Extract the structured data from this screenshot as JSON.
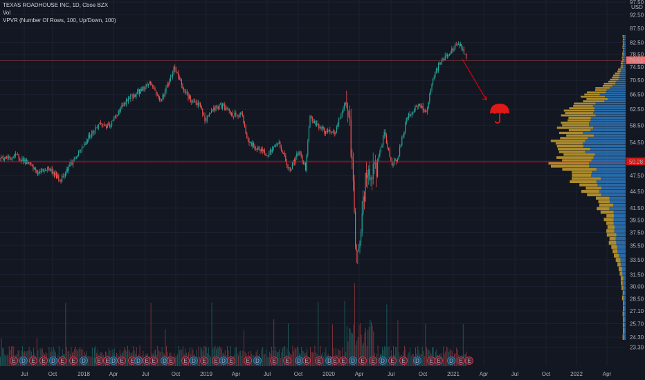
{
  "header": {
    "symbol_line": "TEXAS ROADHOUSE INC, 1D, Cboe BZX",
    "volume_label": "Vol",
    "vpvr_label": "VPVR (Number Of Rows, 100, Up/Down, 100)"
  },
  "colors": {
    "background": "#131722",
    "up": "#26a69a",
    "down": "#ef5350",
    "vp_up": "#2e78bd",
    "vp_down": "#c8a030",
    "level_line": "#ff0000",
    "price_tag": "#f07070"
  },
  "chart_data": {
    "type": "candlestick",
    "title": "TEXAS ROADHOUSE INC, 1D, Cboe BZX",
    "currency": "USD",
    "ylim": [
      22.3,
      97.5
    ],
    "y_scale": "log",
    "y_ticks": [
      "97.50",
      "92.50",
      "87.50",
      "82.50",
      "78.50",
      "74.50",
      "70.50",
      "66.50",
      "62.50",
      "58.50",
      "54.50",
      "50.50",
      "47.50",
      "44.50",
      "41.50",
      "39.50",
      "37.50",
      "35.50",
      "33.50",
      "31.50",
      "30.00",
      "28.50",
      "27.10",
      "25.70",
      "24.30",
      "23.30"
    ],
    "x_ticks": [
      "Jul",
      "Oct",
      "2018",
      "Apr",
      "Jul",
      "Oct",
      "2019",
      "Apr",
      "Jul",
      "Oct",
      "2020",
      "Apr",
      "Jul",
      "Oct",
      "2021",
      "Apr",
      "Jul",
      "Oct",
      "2022",
      "Apr"
    ],
    "price_path": [
      [
        "2017-05-15",
        51.0
      ],
      [
        "2017-06-15",
        51.5
      ],
      [
        "2017-07-15",
        50.0
      ],
      [
        "2017-08-15",
        48.0
      ],
      [
        "2017-09-15",
        49.0
      ],
      [
        "2017-10-01",
        48.0
      ],
      [
        "2017-10-20",
        46.5
      ],
      [
        "2017-11-15",
        49.5
      ],
      [
        "2017-12-15",
        52.0
      ],
      [
        "2018-01-15",
        56.0
      ],
      [
        "2018-02-15",
        59.0
      ],
      [
        "2018-03-15",
        58.0
      ],
      [
        "2018-04-15",
        62.5
      ],
      [
        "2018-05-15",
        65.5
      ],
      [
        "2018-06-15",
        67.5
      ],
      [
        "2018-07-15",
        70.0
      ],
      [
        "2018-08-15",
        64.5
      ],
      [
        "2018-09-10",
        70.5
      ],
      [
        "2018-09-25",
        74.5
      ],
      [
        "2018-10-20",
        68.5
      ],
      [
        "2018-11-15",
        64.5
      ],
      [
        "2018-12-10",
        63.5
      ],
      [
        "2018-12-25",
        59.5
      ],
      [
        "2019-01-15",
        62.5
      ],
      [
        "2019-02-15",
        63.5
      ],
      [
        "2019-03-15",
        61.0
      ],
      [
        "2019-04-15",
        61.0
      ],
      [
        "2019-05-01",
        54.5
      ],
      [
        "2019-06-01",
        53.0
      ],
      [
        "2019-07-01",
        52.0
      ],
      [
        "2019-08-01",
        54.5
      ],
      [
        "2019-09-01",
        48.5
      ],
      [
        "2019-10-01",
        52.5
      ],
      [
        "2019-10-20",
        49.0
      ],
      [
        "2019-11-01",
        60.5
      ],
      [
        "2019-12-15",
        57.0
      ],
      [
        "2020-01-15",
        56.5
      ],
      [
        "2020-02-01",
        61.0
      ],
      [
        "2020-02-20",
        65.5
      ],
      [
        "2020-03-01",
        56.0
      ],
      [
        "2020-03-15",
        37.5
      ],
      [
        "2020-03-25",
        33.5
      ],
      [
        "2020-04-15",
        46.5
      ],
      [
        "2020-05-15",
        48.5
      ],
      [
        "2020-06-10",
        56.5
      ],
      [
        "2020-07-01",
        50.0
      ],
      [
        "2020-07-20",
        51.0
      ],
      [
        "2020-08-15",
        60.0
      ],
      [
        "2020-09-15",
        63.5
      ],
      [
        "2020-10-15",
        62.0
      ],
      [
        "2020-11-01",
        70.5
      ],
      [
        "2020-11-20",
        75.5
      ],
      [
        "2020-12-15",
        78.5
      ],
      [
        "2021-01-01",
        80.0
      ],
      [
        "2021-01-15",
        82.5
      ],
      [
        "2021-02-01",
        79.5
      ],
      [
        "2021-02-10",
        77.0
      ]
    ],
    "last_price": "76.51",
    "horizontal_level": "50.28",
    "volume": {
      "earnings_markers": 27,
      "dividend_markers": 7,
      "marker_glyph_E": "E",
      "marker_glyph_D": "D"
    },
    "volume_profile": {
      "rows": 100,
      "mode": "Up/Down",
      "point_of_control": 50.28,
      "value_area": [
        44.5,
        74.5
      ]
    },
    "annotations": [
      {
        "type": "arrow",
        "from": 76.51,
        "direction": "down"
      },
      {
        "type": "icon",
        "name": "umbrella-icon"
      }
    ]
  }
}
